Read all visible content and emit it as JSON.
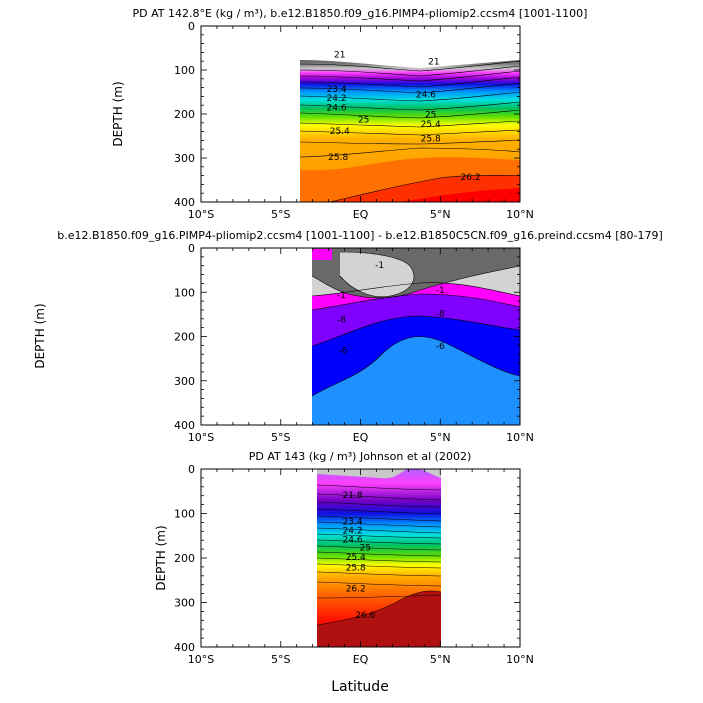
{
  "figure": {
    "xlabel": "Latitude",
    "x_tick_labels": [
      "10°S",
      "5°S",
      "EQ",
      "5°N",
      "10°N"
    ],
    "y_tick_labels": [
      "0",
      "100",
      "200",
      "300",
      "400"
    ]
  },
  "chart_data": [
    {
      "type": "heatmap",
      "title": "PD AT 142.8°E (kg / m³), b.e12.B1850.f09_g16.PIMP4-pliomip2.ccsm4 [1001-1100]",
      "ylabel": "DEPTH (m)",
      "xlim": [
        -10,
        10
      ],
      "ylim": [
        400,
        0
      ],
      "data_extent_lat": [
        -3.8,
        10
      ],
      "contour_labels": [
        {
          "lat": -1.5,
          "depth": 150,
          "text": "23.4"
        },
        {
          "lat": -1.5,
          "depth": 170,
          "text": "24.2"
        },
        {
          "lat": -1.5,
          "depth": 192,
          "text": "24.6"
        },
        {
          "lat": 0.2,
          "depth": 219,
          "text": "25"
        },
        {
          "lat": -1.3,
          "depth": 245,
          "text": "25.4"
        },
        {
          "lat": -1.4,
          "depth": 305,
          "text": "25.8"
        },
        {
          "lat": 4.1,
          "depth": 163,
          "text": "24.6"
        },
        {
          "lat": 4.4,
          "depth": 208,
          "text": "25"
        },
        {
          "lat": 4.4,
          "depth": 230,
          "text": "25.4"
        },
        {
          "lat": 4.4,
          "depth": 262,
          "text": "25.8"
        },
        {
          "lat": 6.9,
          "depth": 350,
          "text": "26.2"
        },
        {
          "lat": -1.3,
          "depth": 72,
          "text": "21"
        },
        {
          "lat": 4.6,
          "depth": 87,
          "text": "21"
        }
      ]
    },
    {
      "type": "heatmap",
      "title": "b.e12.B1850.f09_g16.PIMP4-pliomip2.ccsm4 [1001-1100] - b.e12.B1850C5CN.f09_g16.preind.ccsm4 [80-179]",
      "ylabel": "DEPTH (m)",
      "xlim": [
        -10,
        10
      ],
      "ylim": [
        400,
        0
      ],
      "data_extent_lat": [
        -3.8,
        10
      ],
      "contour_labels": [
        {
          "lat": -1.2,
          "depth": 113,
          "text": "-1"
        },
        {
          "lat": -1.2,
          "depth": 168,
          "text": "-8"
        },
        {
          "lat": 5.0,
          "depth": 155,
          "text": "-8"
        },
        {
          "lat": -1.1,
          "depth": 238,
          "text": "-6"
        },
        {
          "lat": 5.0,
          "depth": 228,
          "text": "-6"
        },
        {
          "lat": 5.0,
          "depth": 102,
          "text": "-1"
        },
        {
          "lat": 1.2,
          "depth": 45,
          "text": "-1"
        }
      ]
    },
    {
      "type": "heatmap",
      "title": "PD AT 143 (kg / m³) Johnson et al (2002)",
      "ylabel": "DEPTH (m)",
      "xlim": [
        -10,
        10
      ],
      "ylim": [
        400,
        0
      ],
      "data_extent_lat": [
        -2.5,
        5
      ],
      "contour_labels": [
        {
          "lat": -0.5,
          "depth": 125,
          "text": "23.4"
        },
        {
          "lat": -0.5,
          "depth": 145,
          "text": "24.2"
        },
        {
          "lat": -0.5,
          "depth": 165,
          "text": "24.6"
        },
        {
          "lat": 0.3,
          "depth": 183,
          "text": "25"
        },
        {
          "lat": -0.3,
          "depth": 205,
          "text": "25.4"
        },
        {
          "lat": -0.3,
          "depth": 228,
          "text": "25.8"
        },
        {
          "lat": -0.3,
          "depth": 275,
          "text": "26.2"
        },
        {
          "lat": 0.3,
          "depth": 335,
          "text": "26.6"
        },
        {
          "lat": -0.5,
          "depth": 65,
          "text": "21.8"
        }
      ]
    }
  ]
}
